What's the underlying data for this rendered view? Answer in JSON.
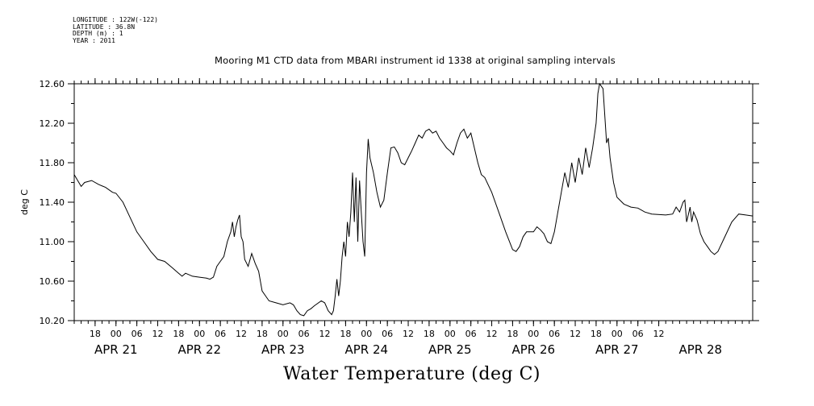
{
  "header": {
    "longitude": "LONGITUDE : 122W(-122)",
    "latitude": "LATITUDE : 36.8N",
    "depth": "DEPTH (m) : 1",
    "year": "YEAR : 2011"
  },
  "chart_data": {
    "type": "line",
    "title": "Mooring M1 CTD data from MBARI instrument id 1338 at original sampling intervals",
    "ylabel": "deg C",
    "variable_label": "Water Temperature (deg C)",
    "ylim": [
      10.2,
      12.6
    ],
    "xlim": [
      "2011-04-20T12:00",
      "2011-04-28T15:00"
    ],
    "yticks": [
      "10.20",
      "10.60",
      "11.00",
      "11.40",
      "11.80",
      "12.20",
      "12.60"
    ],
    "hour_ticks": [
      {
        "x": "2011-04-20T18:00",
        "label": "18"
      },
      {
        "x": "2011-04-21T00:00",
        "label": "00"
      },
      {
        "x": "2011-04-21T06:00",
        "label": "06"
      },
      {
        "x": "2011-04-21T12:00",
        "label": "12"
      },
      {
        "x": "2011-04-21T18:00",
        "label": "18"
      },
      {
        "x": "2011-04-22T00:00",
        "label": "00"
      },
      {
        "x": "2011-04-22T06:00",
        "label": "06"
      },
      {
        "x": "2011-04-22T12:00",
        "label": "12"
      },
      {
        "x": "2011-04-22T18:00",
        "label": "18"
      },
      {
        "x": "2011-04-23T00:00",
        "label": "00"
      },
      {
        "x": "2011-04-23T06:00",
        "label": "06"
      },
      {
        "x": "2011-04-23T12:00",
        "label": "12"
      },
      {
        "x": "2011-04-23T18:00",
        "label": "18"
      },
      {
        "x": "2011-04-24T00:00",
        "label": "00"
      },
      {
        "x": "2011-04-24T06:00",
        "label": "06"
      },
      {
        "x": "2011-04-24T12:00",
        "label": "12"
      },
      {
        "x": "2011-04-24T18:00",
        "label": "18"
      },
      {
        "x": "2011-04-25T00:00",
        "label": "00"
      },
      {
        "x": "2011-04-25T06:00",
        "label": "06"
      },
      {
        "x": "2011-04-25T12:00",
        "label": "12"
      },
      {
        "x": "2011-04-25T18:00",
        "label": "18"
      },
      {
        "x": "2011-04-26T00:00",
        "label": "00"
      },
      {
        "x": "2011-04-26T06:00",
        "label": "06"
      },
      {
        "x": "2011-04-26T12:00",
        "label": "12"
      },
      {
        "x": "2011-04-26T18:00",
        "label": "18"
      },
      {
        "x": "2011-04-27T00:00",
        "label": "00"
      },
      {
        "x": "2011-04-27T06:00",
        "label": "06"
      },
      {
        "x": "2011-04-27T12:00",
        "label": "12"
      }
    ],
    "day_labels": [
      {
        "x": "2011-04-21T00:00",
        "label": "APR 21"
      },
      {
        "x": "2011-04-22T00:00",
        "label": "APR 22"
      },
      {
        "x": "2011-04-23T00:00",
        "label": "APR 23"
      },
      {
        "x": "2011-04-24T00:00",
        "label": "APR 24"
      },
      {
        "x": "2011-04-25T00:00",
        "label": "APR 25"
      },
      {
        "x": "2011-04-26T00:00",
        "label": "APR 26"
      },
      {
        "x": "2011-04-27T00:00",
        "label": "APR 27"
      },
      {
        "x": "2011-04-28T00:00",
        "label": "APR 28"
      }
    ],
    "series": [
      {
        "color": "#000000",
        "points": [
          [
            "2011-04-20T12:00",
            11.68
          ],
          [
            "2011-04-20T13:00",
            11.62
          ],
          [
            "2011-04-20T14:00",
            11.56
          ],
          [
            "2011-04-20T15:00",
            11.6
          ],
          [
            "2011-04-20T17:00",
            11.62
          ],
          [
            "2011-04-20T19:00",
            11.58
          ],
          [
            "2011-04-20T21:00",
            11.55
          ],
          [
            "2011-04-20T23:00",
            11.5
          ],
          [
            "2011-04-21T00:00",
            11.49
          ],
          [
            "2011-04-21T02:00",
            11.4
          ],
          [
            "2011-04-21T04:00",
            11.25
          ],
          [
            "2011-04-21T06:00",
            11.1
          ],
          [
            "2011-04-21T08:00",
            11.0
          ],
          [
            "2011-04-21T10:00",
            10.9
          ],
          [
            "2011-04-21T12:00",
            10.82
          ],
          [
            "2011-04-21T14:00",
            10.8
          ],
          [
            "2011-04-21T16:00",
            10.74
          ],
          [
            "2011-04-21T18:00",
            10.68
          ],
          [
            "2011-04-21T19:00",
            10.65
          ],
          [
            "2011-04-21T20:00",
            10.68
          ],
          [
            "2011-04-21T22:00",
            10.65
          ],
          [
            "2011-04-22T00:00",
            10.64
          ],
          [
            "2011-04-22T02:00",
            10.63
          ],
          [
            "2011-04-22T03:00",
            10.62
          ],
          [
            "2011-04-22T04:00",
            10.64
          ],
          [
            "2011-04-22T05:00",
            10.75
          ],
          [
            "2011-04-22T06:00",
            10.8
          ],
          [
            "2011-04-22T07:00",
            10.85
          ],
          [
            "2011-04-22T08:00",
            11.0
          ],
          [
            "2011-04-22T09:00",
            11.1
          ],
          [
            "2011-04-22T09:30",
            11.2
          ],
          [
            "2011-04-22T10:00",
            11.05
          ],
          [
            "2011-04-22T10:30",
            11.15
          ],
          [
            "2011-04-22T11:00",
            11.22
          ],
          [
            "2011-04-22T11:30",
            11.27
          ],
          [
            "2011-04-22T12:00",
            11.05
          ],
          [
            "2011-04-22T12:30",
            11.0
          ],
          [
            "2011-04-22T13:00",
            10.82
          ],
          [
            "2011-04-22T14:00",
            10.75
          ],
          [
            "2011-04-22T15:00",
            10.88
          ],
          [
            "2011-04-22T16:00",
            10.78
          ],
          [
            "2011-04-22T17:00",
            10.7
          ],
          [
            "2011-04-22T18:00",
            10.5
          ],
          [
            "2011-04-22T19:00",
            10.45
          ],
          [
            "2011-04-22T20:00",
            10.4
          ],
          [
            "2011-04-22T22:00",
            10.38
          ],
          [
            "2011-04-23T00:00",
            10.36
          ],
          [
            "2011-04-23T02:00",
            10.38
          ],
          [
            "2011-04-23T03:00",
            10.36
          ],
          [
            "2011-04-23T04:00",
            10.3
          ],
          [
            "2011-04-23T05:00",
            10.26
          ],
          [
            "2011-04-23T06:00",
            10.25
          ],
          [
            "2011-04-23T07:00",
            10.3
          ],
          [
            "2011-04-23T08:00",
            10.32
          ],
          [
            "2011-04-23T09:00",
            10.35
          ],
          [
            "2011-04-23T11:00",
            10.4
          ],
          [
            "2011-04-23T12:00",
            10.38
          ],
          [
            "2011-04-23T13:00",
            10.3
          ],
          [
            "2011-04-23T14:00",
            10.26
          ],
          [
            "2011-04-23T14:30",
            10.3
          ],
          [
            "2011-04-23T15:00",
            10.45
          ],
          [
            "2011-04-23T15:30",
            10.62
          ],
          [
            "2011-04-23T16:00",
            10.45
          ],
          [
            "2011-04-23T16:30",
            10.6
          ],
          [
            "2011-04-23T17:00",
            10.85
          ],
          [
            "2011-04-23T17:30",
            11.0
          ],
          [
            "2011-04-23T18:00",
            10.85
          ],
          [
            "2011-04-23T18:30",
            11.2
          ],
          [
            "2011-04-23T19:00",
            11.05
          ],
          [
            "2011-04-23T19:30",
            11.3
          ],
          [
            "2011-04-23T20:00",
            11.7
          ],
          [
            "2011-04-23T20:30",
            11.2
          ],
          [
            "2011-04-23T21:00",
            11.65
          ],
          [
            "2011-04-23T21:30",
            11.0
          ],
          [
            "2011-04-23T22:00",
            11.62
          ],
          [
            "2011-04-23T22:30",
            11.3
          ],
          [
            "2011-04-23T23:00",
            11.0
          ],
          [
            "2011-04-23T23:30",
            10.85
          ],
          [
            "2011-04-24T00:00",
            11.7
          ],
          [
            "2011-04-24T00:30",
            12.04
          ],
          [
            "2011-04-24T01:00",
            11.85
          ],
          [
            "2011-04-24T02:00",
            11.7
          ],
          [
            "2011-04-24T03:00",
            11.5
          ],
          [
            "2011-04-24T04:00",
            11.35
          ],
          [
            "2011-04-24T05:00",
            11.42
          ],
          [
            "2011-04-24T06:00",
            11.7
          ],
          [
            "2011-04-24T07:00",
            11.95
          ],
          [
            "2011-04-24T08:00",
            11.96
          ],
          [
            "2011-04-24T09:00",
            11.9
          ],
          [
            "2011-04-24T10:00",
            11.8
          ],
          [
            "2011-04-24T11:00",
            11.78
          ],
          [
            "2011-04-24T12:00",
            11.85
          ],
          [
            "2011-04-24T13:00",
            11.92
          ],
          [
            "2011-04-24T14:00",
            12.0
          ],
          [
            "2011-04-24T15:00",
            12.08
          ],
          [
            "2011-04-24T16:00",
            12.05
          ],
          [
            "2011-04-24T17:00",
            12.12
          ],
          [
            "2011-04-24T18:00",
            12.14
          ],
          [
            "2011-04-24T19:00",
            12.1
          ],
          [
            "2011-04-24T20:00",
            12.12
          ],
          [
            "2011-04-24T21:00",
            12.05
          ],
          [
            "2011-04-24T22:00",
            12.0
          ],
          [
            "2011-04-24T23:00",
            11.95
          ],
          [
            "2011-04-25T00:00",
            11.92
          ],
          [
            "2011-04-25T01:00",
            11.88
          ],
          [
            "2011-04-25T02:00",
            12.0
          ],
          [
            "2011-04-25T03:00",
            12.1
          ],
          [
            "2011-04-25T04:00",
            12.14
          ],
          [
            "2011-04-25T05:00",
            12.05
          ],
          [
            "2011-04-25T06:00",
            12.1
          ],
          [
            "2011-04-25T07:00",
            11.95
          ],
          [
            "2011-04-25T08:00",
            11.8
          ],
          [
            "2011-04-25T09:00",
            11.68
          ],
          [
            "2011-04-25T10:00",
            11.65
          ],
          [
            "2011-04-25T12:00",
            11.5
          ],
          [
            "2011-04-25T14:00",
            11.3
          ],
          [
            "2011-04-25T16:00",
            11.1
          ],
          [
            "2011-04-25T18:00",
            10.92
          ],
          [
            "2011-04-25T19:00",
            10.9
          ],
          [
            "2011-04-25T20:00",
            10.95
          ],
          [
            "2011-04-25T21:00",
            11.05
          ],
          [
            "2011-04-25T22:00",
            11.1
          ],
          [
            "2011-04-26T00:00",
            11.1
          ],
          [
            "2011-04-26T01:00",
            11.15
          ],
          [
            "2011-04-26T02:00",
            11.12
          ],
          [
            "2011-04-26T03:00",
            11.08
          ],
          [
            "2011-04-26T04:00",
            11.0
          ],
          [
            "2011-04-26T05:00",
            10.98
          ],
          [
            "2011-04-26T06:00",
            11.1
          ],
          [
            "2011-04-26T07:00",
            11.3
          ],
          [
            "2011-04-26T08:00",
            11.5
          ],
          [
            "2011-04-26T09:00",
            11.7
          ],
          [
            "2011-04-26T10:00",
            11.55
          ],
          [
            "2011-04-26T11:00",
            11.8
          ],
          [
            "2011-04-26T12:00",
            11.6
          ],
          [
            "2011-04-26T13:00",
            11.85
          ],
          [
            "2011-04-26T14:00",
            11.68
          ],
          [
            "2011-04-26T15:00",
            11.95
          ],
          [
            "2011-04-26T16:00",
            11.75
          ],
          [
            "2011-04-26T17:00",
            11.95
          ],
          [
            "2011-04-26T18:00",
            12.2
          ],
          [
            "2011-04-26T18:30",
            12.5
          ],
          [
            "2011-04-26T19:00",
            12.6
          ],
          [
            "2011-04-26T20:00",
            12.55
          ],
          [
            "2011-04-26T21:00",
            12.0
          ],
          [
            "2011-04-26T21:30",
            12.05
          ],
          [
            "2011-04-26T22:00",
            11.85
          ],
          [
            "2011-04-26T23:00",
            11.6
          ],
          [
            "2011-04-27T00:00",
            11.45
          ],
          [
            "2011-04-27T02:00",
            11.38
          ],
          [
            "2011-04-27T04:00",
            11.35
          ],
          [
            "2011-04-27T06:00",
            11.34
          ],
          [
            "2011-04-27T08:00",
            11.3
          ],
          [
            "2011-04-27T10:00",
            11.28
          ],
          [
            "2011-04-27T14:00",
            11.27
          ],
          [
            "2011-04-27T16:00",
            11.28
          ],
          [
            "2011-04-27T17:00",
            11.35
          ],
          [
            "2011-04-27T18:00",
            11.3
          ],
          [
            "2011-04-27T19:00",
            11.4
          ],
          [
            "2011-04-27T19:30",
            11.42
          ],
          [
            "2011-04-27T20:00",
            11.2
          ],
          [
            "2011-04-27T21:00",
            11.35
          ],
          [
            "2011-04-27T21:30",
            11.2
          ],
          [
            "2011-04-27T22:00",
            11.3
          ],
          [
            "2011-04-27T23:00",
            11.22
          ],
          [
            "2011-04-28T00:00",
            11.08
          ],
          [
            "2011-04-28T01:00",
            11.0
          ],
          [
            "2011-04-28T02:00",
            10.95
          ],
          [
            "2011-04-28T03:00",
            10.9
          ],
          [
            "2011-04-28T04:00",
            10.87
          ],
          [
            "2011-04-28T05:00",
            10.9
          ],
          [
            "2011-04-28T07:00",
            11.05
          ],
          [
            "2011-04-28T09:00",
            11.2
          ],
          [
            "2011-04-28T11:00",
            11.28
          ],
          [
            "2011-04-28T13:00",
            11.27
          ],
          [
            "2011-04-28T15:00",
            11.26
          ]
        ]
      }
    ]
  }
}
